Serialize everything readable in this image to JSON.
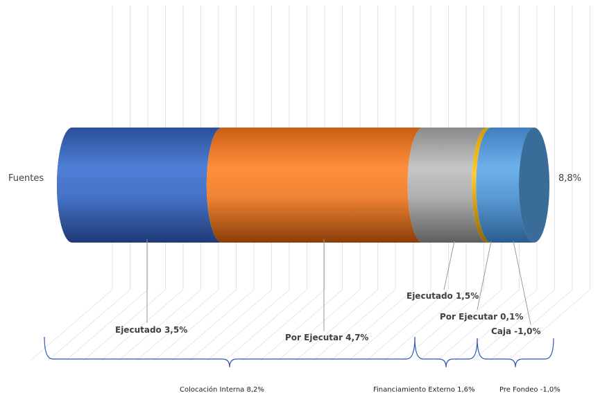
{
  "chart_data": {
    "type": "bar",
    "orientation": "horizontal",
    "stacked": true,
    "style": "3d-cylinder",
    "grid": true,
    "categories": [
      "Fuentes"
    ],
    "total_label": "8,8%",
    "series": [
      {
        "name": "Ejecutado",
        "label": "Ejecutado 3,5%",
        "value": 3.5,
        "color": "#4472C4"
      },
      {
        "name": "Por Ejecutar",
        "label": "Por Ejecutar  4,7%",
        "value": 4.7,
        "color": "#ED7D31"
      },
      {
        "name": "Ejecutado",
        "label": "Ejecutado  1,5%",
        "value": 1.5,
        "color": "#A5A5A5"
      },
      {
        "name": "Por Ejecutar",
        "label": "Por Ejecutar 0,1%",
        "value": 0.1,
        "color": "#FFC000"
      },
      {
        "name": "Caja",
        "label": "Caja -1,0%",
        "value": -1.0,
        "color": "#5B9BD5"
      }
    ],
    "groups": [
      {
        "label": "Colocación Interna 8,2%"
      },
      {
        "label": "Financiamiento Externo  1,6%"
      },
      {
        "label": "Pre Fondeo -1,0%"
      }
    ]
  }
}
